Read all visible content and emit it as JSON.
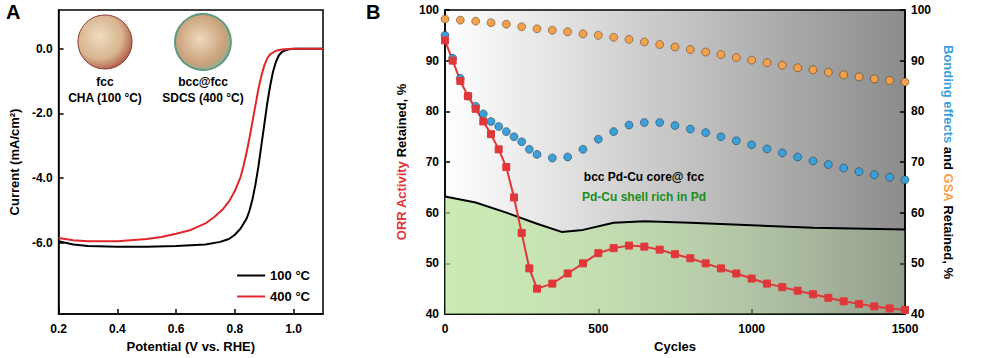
{
  "chart_data": [
    {
      "type": "line",
      "panel": "A",
      "xlabel": "Potential (V vs. RHE)",
      "ylabel": "Current (mA/cm²)",
      "xlim": [
        0.2,
        1.1
      ],
      "xticks": [
        0.2,
        0.4,
        0.6,
        0.8,
        {
          "value": 1,
          "label": "1.0"
        }
      ],
      "ylim": [
        -8.2,
        1.2
      ],
      "yticks": [
        {
          "value": 0,
          "label": "0.0"
        },
        {
          "value": -2,
          "label": "-2.0"
        },
        {
          "value": -4,
          "label": "-4.0"
        },
        {
          "value": -6,
          "label": "-6.0"
        }
      ],
      "grid": false,
      "legend": "bottom-right",
      "annotations": [
        "fcc",
        "CHA (100 °C)",
        "bcc@fcc",
        "SDCS (400 °C)"
      ],
      "series": [
        {
          "name": "100 °C",
          "color": "#000000",
          "line_style": "solid",
          "x": [
            0.2,
            0.25,
            0.3,
            0.4,
            0.5,
            0.6,
            0.7,
            0.75,
            0.78,
            0.8,
            0.82,
            0.84,
            0.85,
            0.86,
            0.87,
            0.88,
            0.89,
            0.9,
            0.91,
            0.92,
            0.93,
            0.94,
            0.95,
            0.96,
            0.97,
            0.98,
            1.0,
            1.05,
            1.1
          ],
          "values": [
            -5.95,
            -6.05,
            -6.1,
            -6.12,
            -6.12,
            -6.1,
            -6.05,
            -5.97,
            -5.88,
            -5.75,
            -5.55,
            -5.25,
            -5.0,
            -4.65,
            -4.2,
            -3.65,
            -3.0,
            -2.35,
            -1.7,
            -1.15,
            -0.7,
            -0.4,
            -0.2,
            -0.1,
            -0.05,
            -0.02,
            0,
            0,
            0
          ]
        },
        {
          "name": "400 °C",
          "color": "#e0262b",
          "line_style": "solid",
          "x": [
            0.2,
            0.25,
            0.3,
            0.4,
            0.5,
            0.55,
            0.6,
            0.65,
            0.7,
            0.73,
            0.76,
            0.78,
            0.8,
            0.82,
            0.83,
            0.84,
            0.85,
            0.86,
            0.87,
            0.88,
            0.89,
            0.9,
            0.91,
            0.92,
            0.94,
            0.96,
            1.0,
            1.05,
            1.1
          ],
          "values": [
            -5.85,
            -5.92,
            -5.95,
            -5.95,
            -5.88,
            -5.82,
            -5.72,
            -5.6,
            -5.4,
            -5.2,
            -4.95,
            -4.72,
            -4.4,
            -3.95,
            -3.6,
            -3.2,
            -2.75,
            -2.25,
            -1.75,
            -1.25,
            -0.85,
            -0.52,
            -0.3,
            -0.17,
            -0.06,
            -0.02,
            0,
            0,
            0
          ]
        }
      ]
    },
    {
      "type": "line",
      "panel": "B",
      "xlabel": "Cycles",
      "ylabel": "ORR Activity Retained, %",
      "y2label": "Bonding effects and GSA Retained, %",
      "xlim": [
        0,
        1500
      ],
      "xticks": [
        0,
        500,
        1000,
        1500
      ],
      "ylim": [
        40,
        100
      ],
      "yticks": [
        40,
        50,
        60,
        70,
        80,
        90,
        100
      ],
      "y2lim": [
        40,
        100
      ],
      "y2ticks": [
        40,
        50,
        60,
        70,
        80,
        90,
        100
      ],
      "grid": false,
      "annotations": [
        "bcc Pd-Cu core@ fcc",
        "Pd-Cu shell rich in Pd"
      ],
      "series": [
        {
          "type": "area",
          "color": "#000000",
          "line_style": "solid",
          "axis": "y",
          "x": [
            0,
            100,
            200,
            300,
            380,
            450,
            550,
            650,
            800,
            1000,
            1200,
            1500
          ],
          "values": [
            63.2,
            62,
            60,
            57.8,
            56.2,
            56.6,
            58,
            58.3,
            58,
            57.5,
            57,
            56.7
          ]
        },
        {
          "name": "GSA",
          "type": "scatter",
          "color": "#f5a04a",
          "marker": "circle",
          "axis": "y2",
          "x": [
            0,
            50,
            100,
            150,
            200,
            250,
            300,
            350,
            400,
            450,
            500,
            550,
            600,
            650,
            700,
            750,
            800,
            850,
            900,
            950,
            1000,
            1050,
            1100,
            1150,
            1200,
            1250,
            1300,
            1350,
            1400,
            1450,
            1500
          ],
          "values": [
            98.2,
            98,
            97.8,
            97.5,
            97.2,
            96.7,
            96.3,
            96,
            95.7,
            95.3,
            95,
            94.6,
            94.2,
            93.7,
            93.2,
            92.7,
            92.2,
            91.7,
            91.2,
            90.6,
            90.1,
            89.6,
            89.1,
            88.6,
            88.2,
            87.7,
            87.2,
            86.8,
            86.4,
            86.1,
            85.8
          ]
        },
        {
          "name": "Bonding effects",
          "type": "scatter",
          "color": "#3b9fd8",
          "marker": "circle",
          "axis": "y2",
          "x": [
            0,
            25,
            50,
            75,
            100,
            125,
            150,
            175,
            200,
            225,
            250,
            275,
            300,
            350,
            400,
            450,
            500,
            550,
            600,
            650,
            700,
            750,
            800,
            850,
            900,
            950,
            1000,
            1050,
            1100,
            1150,
            1200,
            1250,
            1300,
            1350,
            1400,
            1450,
            1500
          ],
          "values": [
            95,
            90.5,
            86.5,
            83,
            81,
            79.5,
            78,
            77,
            76,
            75,
            74,
            72.5,
            71.5,
            70.8,
            71,
            72.5,
            74.5,
            76,
            77.3,
            77.8,
            77.8,
            77.2,
            76.5,
            75.8,
            75,
            74.2,
            73.4,
            72.6,
            71.8,
            71,
            70.2,
            69.5,
            68.8,
            68.1,
            67.5,
            67,
            66.5
          ]
        },
        {
          "name": "ORR Activity",
          "type": "line",
          "color": "#e0383a",
          "marker": "square",
          "line_style": "solid",
          "axis": "y",
          "x": [
            0,
            25,
            50,
            75,
            100,
            125,
            150,
            175,
            200,
            225,
            250,
            275,
            300,
            350,
            400,
            450,
            500,
            550,
            600,
            650,
            700,
            750,
            800,
            850,
            900,
            950,
            1000,
            1050,
            1100,
            1150,
            1200,
            1250,
            1300,
            1350,
            1400,
            1450,
            1500
          ],
          "values": [
            94,
            90,
            86,
            83,
            80.5,
            78,
            75.5,
            72.5,
            69,
            63,
            56,
            49,
            45,
            46,
            48,
            50,
            52,
            53,
            53.5,
            53.3,
            52.7,
            51.8,
            51,
            50,
            49,
            48,
            47,
            46,
            45.3,
            44.6,
            43.9,
            43.2,
            42.5,
            42,
            41.5,
            41.1,
            40.8
          ]
        }
      ]
    }
  ]
}
